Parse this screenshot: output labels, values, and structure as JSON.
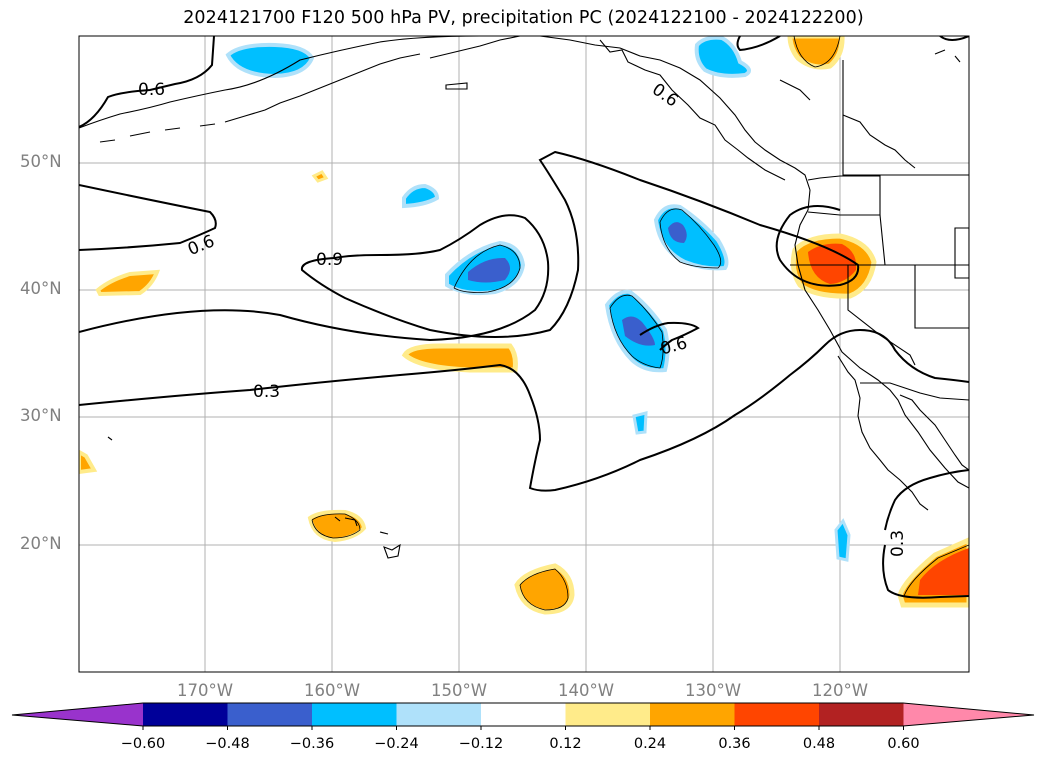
{
  "title": "2024121700 F120 500 hPa PV, precipitation PC (2024122100 - 2024122200)",
  "map": {
    "lat_labels": [
      "50°N",
      "40°N",
      "30°N",
      "20°N"
    ],
    "lon_labels": [
      "170°W",
      "160°W",
      "150°W",
      "140°W",
      "130°W",
      "120°W"
    ],
    "contour_labels": [
      "0.6",
      "0.6",
      "0.9",
      "0.3",
      "0.6",
      "0.6",
      "0.3"
    ]
  },
  "colorbar": {
    "ticks": [
      "−0.60",
      "−0.48",
      "−0.36",
      "−0.24",
      "−0.12",
      "0.12",
      "0.24",
      "0.36",
      "0.48",
      "0.60"
    ],
    "colors": [
      "#9933cc",
      "#000099",
      "#3a5fcd",
      "#00bfff",
      "#afe1fa",
      "#ffffff",
      "#ffeb8a",
      "#ffa500",
      "#ff4500",
      "#b22222",
      "#ff88aa"
    ]
  }
}
